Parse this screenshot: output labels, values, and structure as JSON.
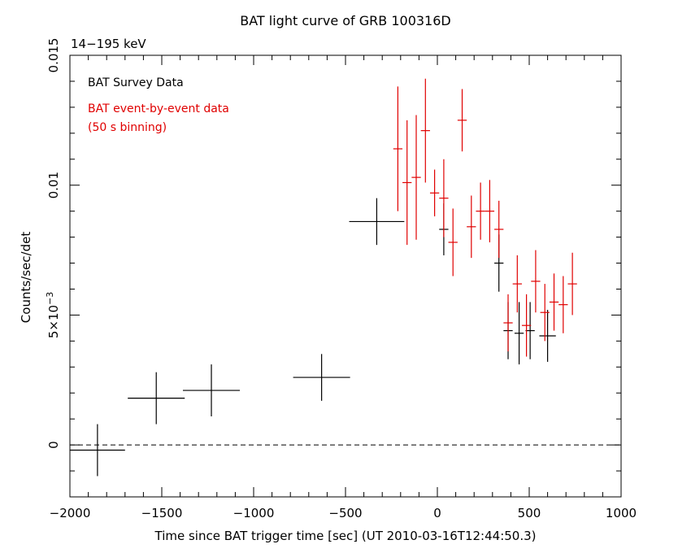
{
  "chart_data": {
    "type": "scatter",
    "title": "BAT light curve of GRB 100316D",
    "subtitle": "14−195 keV",
    "xlabel": "Time since BAT trigger time [sec] (UT 2010-03-16T12:44:50.3)",
    "ylabel": "Counts/sec/det",
    "xlim": [
      -2000,
      1000
    ],
    "ylim": [
      -0.002,
      0.015
    ],
    "x_ticks": [
      {
        "value": -2000,
        "label": "−2000"
      },
      {
        "value": -1500,
        "label": "−1500"
      },
      {
        "value": -1000,
        "label": "−1000"
      },
      {
        "value": -500,
        "label": "−500"
      },
      {
        "value": 0,
        "label": "0"
      },
      {
        "value": 500,
        "label": "500"
      },
      {
        "value": 1000,
        "label": "1000"
      }
    ],
    "y_ticks": [
      {
        "value": 0,
        "label": "0"
      },
      {
        "value": 0.005,
        "label": "5×10",
        "sup": "−3"
      },
      {
        "value": 0.01,
        "label": "0.01"
      },
      {
        "value": 0.015,
        "label": "0.015"
      }
    ],
    "zero_line": {
      "value": 0,
      "style": "dashed"
    },
    "series": [
      {
        "name": "BAT Survey Data",
        "color": "#000000",
        "points": [
          {
            "x": -1850,
            "y": -0.0002,
            "xerr": 150,
            "yerr": 0.001
          },
          {
            "x": -1530,
            "y": 0.0018,
            "xerr": 155,
            "yerr": 0.001
          },
          {
            "x": -1230,
            "y": 0.0021,
            "xerr": 155,
            "yerr": 0.001
          },
          {
            "x": -630,
            "y": 0.0026,
            "xerr": 155,
            "yerr": 0.0009
          },
          {
            "x": -330,
            "y": 0.0086,
            "xerr": 150,
            "yerr": 0.0009
          },
          {
            "x": 35,
            "y": 0.0083,
            "xerr": 25,
            "yerr": 0.001
          },
          {
            "x": 335,
            "y": 0.007,
            "xerr": 25,
            "yerr": 0.0011
          },
          {
            "x": 385,
            "y": 0.0044,
            "xerr": 25,
            "yerr": 0.0011
          },
          {
            "x": 445,
            "y": 0.0043,
            "xerr": 25,
            "yerr": 0.0012
          },
          {
            "x": 505,
            "y": 0.0044,
            "xerr": 25,
            "yerr": 0.0011
          },
          {
            "x": 600,
            "y": 0.0042,
            "xerr": 45,
            "yerr": 0.001
          }
        ]
      },
      {
        "name": "BAT event-by-event data",
        "name_note": "(50 s binning)",
        "color": "#e00000",
        "points": [
          {
            "x": -215,
            "y": 0.0114,
            "xerr": 25,
            "yerr": 0.0024
          },
          {
            "x": -165,
            "y": 0.0101,
            "xerr": 25,
            "yerr": 0.0024
          },
          {
            "x": -115,
            "y": 0.0103,
            "xerr": 25,
            "yerr": 0.0024
          },
          {
            "x": -65,
            "y": 0.0121,
            "xerr": 25,
            "yerr": 0.002
          },
          {
            "x": -15,
            "y": 0.0097,
            "xerr": 25,
            "yerr": 0.0009
          },
          {
            "x": 35,
            "y": 0.0095,
            "xerr": 25,
            "yerr": 0.0015
          },
          {
            "x": 85,
            "y": 0.0078,
            "xerr": 25,
            "yerr": 0.0013
          },
          {
            "x": 135,
            "y": 0.0125,
            "xerr": 25,
            "yerr": 0.0012
          },
          {
            "x": 185,
            "y": 0.0084,
            "xerr": 25,
            "yerr": 0.0012
          },
          {
            "x": 235,
            "y": 0.009,
            "xerr": 25,
            "yerr": 0.0011
          },
          {
            "x": 285,
            "y": 0.009,
            "xerr": 25,
            "yerr": 0.0012
          },
          {
            "x": 335,
            "y": 0.0083,
            "xerr": 25,
            "yerr": 0.0011
          },
          {
            "x": 385,
            "y": 0.0047,
            "xerr": 25,
            "yerr": 0.0011
          },
          {
            "x": 435,
            "y": 0.0062,
            "xerr": 25,
            "yerr": 0.0011
          },
          {
            "x": 485,
            "y": 0.0046,
            "xerr": 25,
            "yerr": 0.0012
          },
          {
            "x": 535,
            "y": 0.0063,
            "xerr": 25,
            "yerr": 0.0012
          },
          {
            "x": 585,
            "y": 0.0051,
            "xerr": 25,
            "yerr": 0.0011
          },
          {
            "x": 635,
            "y": 0.0055,
            "xerr": 25,
            "yerr": 0.0011
          },
          {
            "x": 685,
            "y": 0.0054,
            "xerr": 25,
            "yerr": 0.0011
          },
          {
            "x": 735,
            "y": 0.0062,
            "xerr": 25,
            "yerr": 0.0012
          }
        ]
      }
    ]
  }
}
